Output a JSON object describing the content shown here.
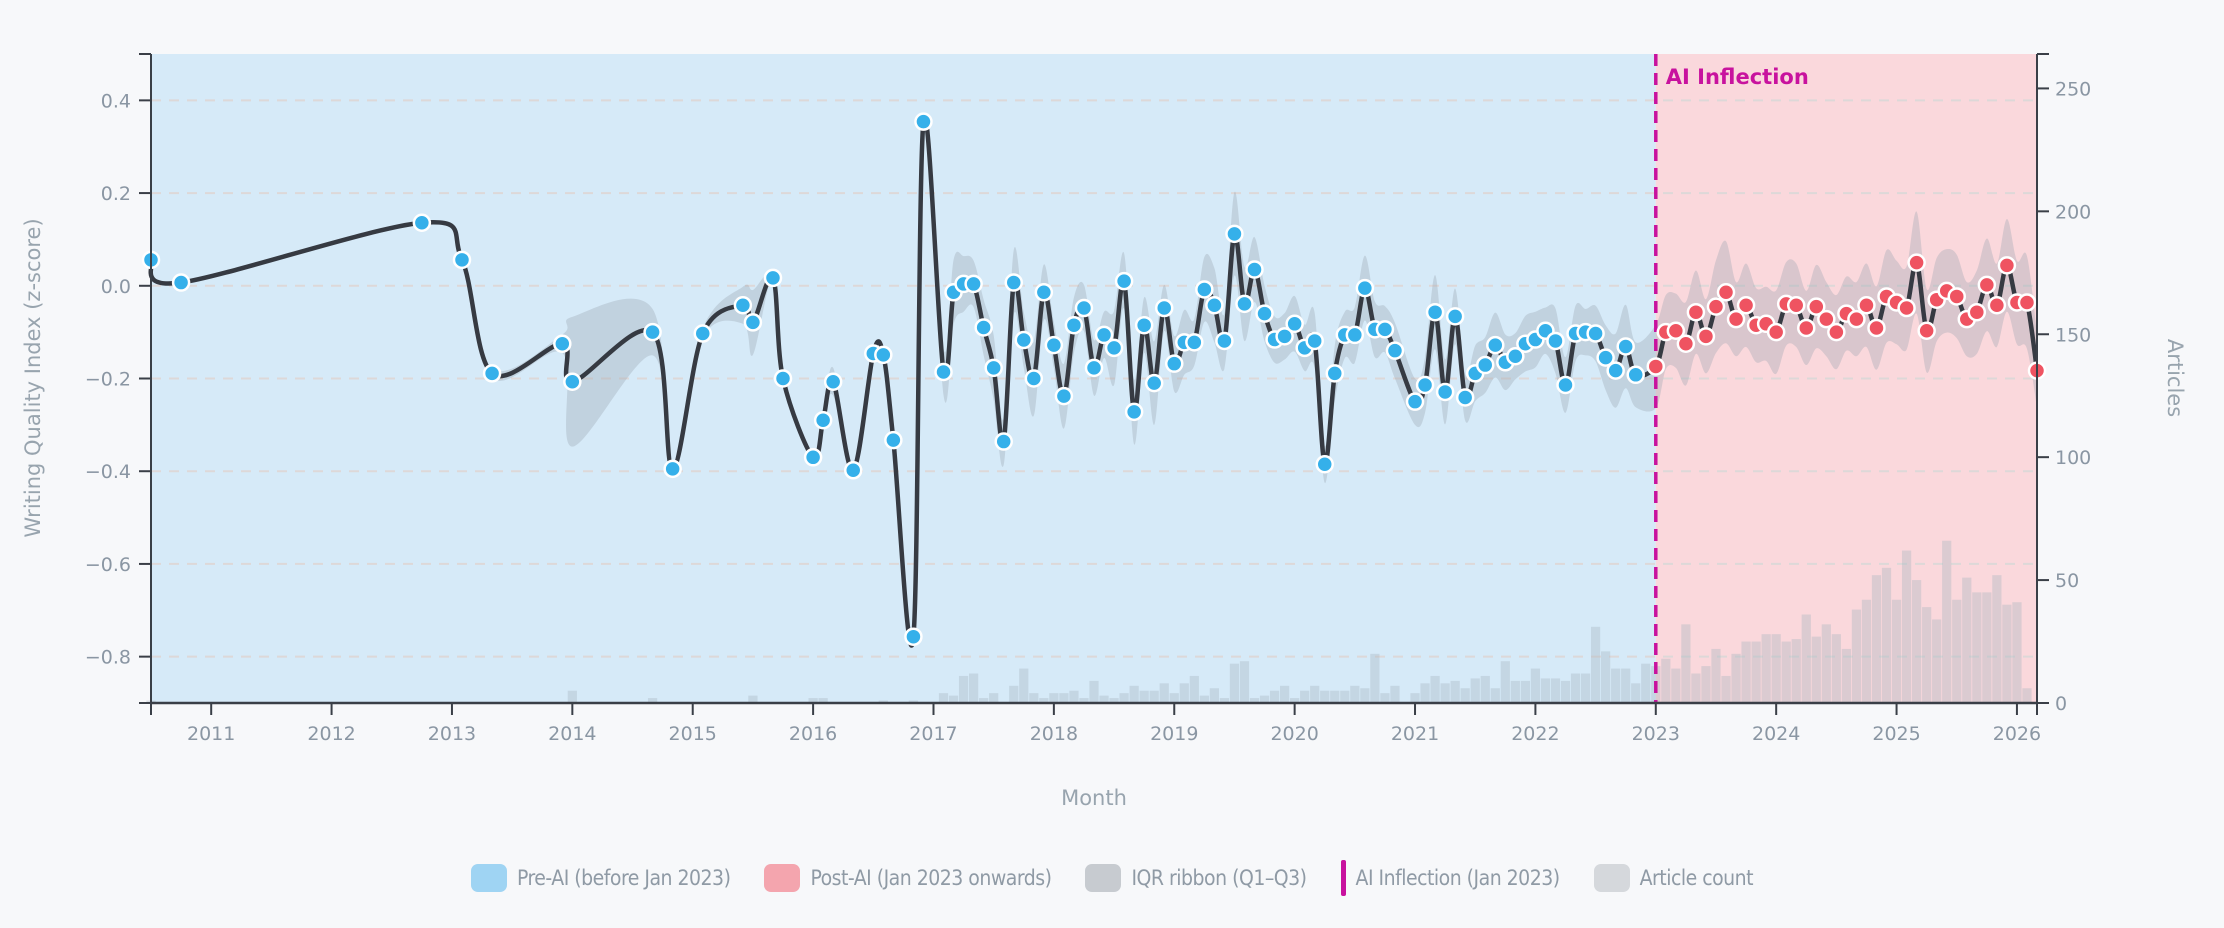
{
  "chart_data": {
    "type": "line",
    "xlabel": "Month",
    "ylabel": "Writing Quality Index (z-score)",
    "y2label": "Articles",
    "ylim": [
      -0.9,
      0.5
    ],
    "y2lim": [
      0,
      264
    ],
    "xlim": [
      "2010-07",
      "2026-03"
    ],
    "yticks": [
      "0.4",
      "0.2",
      "0.0",
      "−0.2",
      "−0.4",
      "−0.6",
      "−0.8"
    ],
    "ytick_values": [
      0.4,
      0.2,
      0.0,
      -0.2,
      -0.4,
      -0.6,
      -0.8
    ],
    "y2ticks": [
      0,
      50,
      100,
      150,
      200,
      250
    ],
    "xticks": [
      "2011",
      "2012",
      "2013",
      "2014",
      "2015",
      "2016",
      "2017",
      "2018",
      "2019",
      "2020",
      "2021",
      "2022",
      "2023",
      "2024",
      "2025",
      "2026"
    ],
    "grid": "horizontal dashed",
    "inflection": {
      "date": "2023-01",
      "label": "AI Inflection"
    },
    "colors": {
      "pre_region": "#d6eaf8",
      "post_region": "#fad8dc",
      "pre_point": "#35b0ea",
      "post_point": "#ef5361",
      "line": "#363a42",
      "ribbon": "#9aa5b1",
      "bars": "#a9b6c0",
      "inflection": "#c8129e"
    },
    "series_points_format": "[month, writing quality index, IQR half-width]",
    "points": [
      [
        "2010-07",
        0.056,
        0
      ],
      [
        "2010-10",
        0.007,
        0
      ],
      [
        "2012-10",
        0.136,
        0
      ],
      [
        "2013-02",
        0.056,
        0
      ],
      [
        "2013-05",
        -0.189,
        0.01
      ],
      [
        "2013-12",
        -0.125,
        0.02
      ],
      [
        "2014-01",
        -0.207,
        0.14
      ],
      [
        "2014-09",
        -0.1,
        0.05
      ],
      [
        "2014-11",
        -0.395,
        0
      ],
      [
        "2015-02",
        -0.103,
        0.01
      ],
      [
        "2015-06",
        -0.042,
        0.04
      ],
      [
        "2015-07",
        -0.079,
        0.07
      ],
      [
        "2015-09",
        0.017,
        0
      ],
      [
        "2015-10",
        -0.2,
        0
      ],
      [
        "2016-01",
        -0.37,
        0
      ],
      [
        "2016-02",
        -0.29,
        0
      ],
      [
        "2016-03",
        -0.207,
        0.03
      ],
      [
        "2016-05",
        -0.398,
        0
      ],
      [
        "2016-07",
        -0.146,
        0
      ],
      [
        "2016-08",
        -0.149,
        0
      ],
      [
        "2016-09",
        -0.333,
        0
      ],
      [
        "2016-11",
        -0.757,
        0
      ],
      [
        "2016-12",
        0.354,
        0
      ],
      [
        "2017-02",
        -0.186,
        0.05
      ],
      [
        "2017-03",
        -0.014,
        0.07
      ],
      [
        "2017-04",
        0.004,
        0.06
      ],
      [
        "2017-05",
        0.004,
        0.05
      ],
      [
        "2017-06",
        -0.09,
        0.06
      ],
      [
        "2017-07",
        -0.177,
        0.07
      ],
      [
        "2017-08",
        -0.336,
        0.05
      ],
      [
        "2017-09",
        0.007,
        0.07
      ],
      [
        "2017-10",
        -0.117,
        0.06
      ],
      [
        "2017-11",
        -0.2,
        0.08
      ],
      [
        "2017-12",
        -0.014,
        0.06
      ],
      [
        "2018-01",
        -0.128,
        0.05
      ],
      [
        "2018-02",
        -0.238,
        0.07
      ],
      [
        "2018-03",
        -0.085,
        0.06
      ],
      [
        "2018-04",
        -0.048,
        0.05
      ],
      [
        "2018-05",
        -0.177,
        0.06
      ],
      [
        "2018-06",
        -0.106,
        0.05
      ],
      [
        "2018-07",
        -0.134,
        0.08
      ],
      [
        "2018-08",
        0.01,
        0.06
      ],
      [
        "2018-09",
        -0.272,
        0.07
      ],
      [
        "2018-10",
        -0.085,
        0.06
      ],
      [
        "2018-11",
        -0.21,
        0.09
      ],
      [
        "2018-12",
        -0.048,
        0.05
      ],
      [
        "2019-01",
        -0.168,
        0.06
      ],
      [
        "2019-02",
        -0.122,
        0.07
      ],
      [
        "2019-03",
        -0.122,
        0.05
      ],
      [
        "2019-04",
        -0.008,
        0.07
      ],
      [
        "2019-05",
        -0.042,
        0.08
      ],
      [
        "2019-06",
        -0.119,
        0.06
      ],
      [
        "2019-07",
        0.112,
        0.09
      ],
      [
        "2019-08",
        -0.039,
        0.08
      ],
      [
        "2019-09",
        0.035,
        0.07
      ],
      [
        "2019-10",
        -0.06,
        0.06
      ],
      [
        "2019-11",
        -0.116,
        0.05
      ],
      [
        "2019-12",
        -0.109,
        0.05
      ],
      [
        "2020-01",
        -0.082,
        0.06
      ],
      [
        "2020-02",
        -0.134,
        0.05
      ],
      [
        "2020-03",
        -0.119,
        0.06
      ],
      [
        "2020-04",
        -0.385,
        0.04
      ],
      [
        "2020-05",
        -0.189,
        0.06
      ],
      [
        "2020-06",
        -0.106,
        0.05
      ],
      [
        "2020-07",
        -0.106,
        0.06
      ],
      [
        "2020-08",
        -0.005,
        0.07
      ],
      [
        "2020-09",
        -0.094,
        0.06
      ],
      [
        "2020-10",
        -0.094,
        0.05
      ],
      [
        "2020-11",
        -0.14,
        0.06
      ],
      [
        "2021-01",
        -0.25,
        0.05
      ],
      [
        "2021-02",
        -0.214,
        0.06
      ],
      [
        "2021-03",
        -0.057,
        0.08
      ],
      [
        "2021-04",
        -0.229,
        0.07
      ],
      [
        "2021-05",
        -0.066,
        0.06
      ],
      [
        "2021-06",
        -0.241,
        0.05
      ],
      [
        "2021-07",
        -0.189,
        0.06
      ],
      [
        "2021-08",
        -0.171,
        0.06
      ],
      [
        "2021-09",
        -0.128,
        0.07
      ],
      [
        "2021-10",
        -0.165,
        0.06
      ],
      [
        "2021-11",
        -0.152,
        0.05
      ],
      [
        "2021-12",
        -0.125,
        0.06
      ],
      [
        "2022-01",
        -0.116,
        0.06
      ],
      [
        "2022-02",
        -0.097,
        0.05
      ],
      [
        "2022-03",
        -0.119,
        0.07
      ],
      [
        "2022-04",
        -0.214,
        0.06
      ],
      [
        "2022-05",
        -0.103,
        0.06
      ],
      [
        "2022-06",
        -0.1,
        0.05
      ],
      [
        "2022-07",
        -0.103,
        0.06
      ],
      [
        "2022-08",
        -0.155,
        0.07
      ],
      [
        "2022-09",
        -0.183,
        0.08
      ],
      [
        "2022-10",
        -0.131,
        0.09
      ],
      [
        "2022-11",
        -0.192,
        0.07
      ],
      [
        "2023-01",
        -0.174,
        0.09
      ],
      [
        "2023-02",
        -0.1,
        0.08
      ],
      [
        "2023-03",
        -0.097,
        0.08
      ],
      [
        "2023-04",
        -0.125,
        0.09
      ],
      [
        "2023-05",
        -0.057,
        0.09
      ],
      [
        "2023-06",
        -0.109,
        0.08
      ],
      [
        "2023-07",
        -0.045,
        0.1
      ],
      [
        "2023-08",
        -0.014,
        0.11
      ],
      [
        "2023-09",
        -0.072,
        0.08
      ],
      [
        "2023-10",
        -0.042,
        0.09
      ],
      [
        "2023-11",
        -0.085,
        0.08
      ],
      [
        "2023-12",
        -0.082,
        0.08
      ],
      [
        "2024-01",
        -0.1,
        0.09
      ],
      [
        "2024-02",
        -0.039,
        0.09
      ],
      [
        "2024-03",
        -0.042,
        0.09
      ],
      [
        "2024-04",
        -0.091,
        0.08
      ],
      [
        "2024-05",
        -0.045,
        0.09
      ],
      [
        "2024-06",
        -0.072,
        0.08
      ],
      [
        "2024-07",
        -0.1,
        0.08
      ],
      [
        "2024-08",
        -0.06,
        0.08
      ],
      [
        "2024-09",
        -0.072,
        0.08
      ],
      [
        "2024-10",
        -0.042,
        0.09
      ],
      [
        "2024-11",
        -0.091,
        0.09
      ],
      [
        "2024-12",
        -0.023,
        0.1
      ],
      [
        "2025-01",
        -0.036,
        0.09
      ],
      [
        "2025-02",
        -0.048,
        0.09
      ],
      [
        "2025-03",
        0.05,
        0.11
      ],
      [
        "2025-04",
        -0.097,
        0.09
      ],
      [
        "2025-05",
        -0.03,
        0.09
      ],
      [
        "2025-06",
        -0.011,
        0.09
      ],
      [
        "2025-07",
        -0.023,
        0.09
      ],
      [
        "2025-08",
        -0.072,
        0.08
      ],
      [
        "2025-09",
        -0.057,
        0.09
      ],
      [
        "2025-10",
        0.002,
        0.1
      ],
      [
        "2025-11",
        -0.042,
        0.09
      ],
      [
        "2025-12",
        0.044,
        0.1
      ],
      [
        "2026-01",
        -0.036,
        0.09
      ],
      [
        "2026-02",
        -0.036,
        0.1
      ],
      [
        "2026-03",
        -0.183,
        0.08
      ]
    ],
    "article_counts_start": "2017-02",
    "article_counts_early": [
      [
        "2010-07",
        1
      ],
      [
        "2014-01",
        5
      ],
      [
        "2014-09",
        2
      ],
      [
        "2015-07",
        3
      ],
      [
        "2016-01",
        2
      ],
      [
        "2016-02",
        2
      ],
      [
        "2016-08",
        1
      ],
      [
        "2016-11",
        1
      ]
    ],
    "article_counts": [
      4,
      3,
      11,
      12,
      2,
      4,
      0,
      7,
      14,
      4,
      2,
      4,
      4,
      5,
      2,
      9,
      3,
      2,
      4,
      7,
      5,
      5,
      8,
      4,
      8,
      11,
      3,
      6,
      2,
      16,
      17,
      2,
      3,
      5,
      7,
      2,
      5,
      7,
      5,
      5,
      5,
      7,
      6,
      20,
      4,
      7,
      0,
      4,
      8,
      11,
      8,
      9,
      6,
      10,
      11,
      6,
      17,
      9,
      9,
      14,
      10,
      10,
      9,
      12,
      12,
      31,
      21,
      14,
      14,
      8,
      16,
      15,
      18,
      14,
      32,
      12,
      15,
      22,
      11,
      20,
      25,
      25,
      28,
      28,
      25,
      26,
      36,
      27,
      32,
      28,
      22,
      38,
      42,
      52,
      55,
      42,
      62,
      50,
      39,
      34,
      66,
      42,
      51,
      45,
      45,
      52,
      40,
      41,
      6
    ]
  },
  "legend": [
    {
      "label": "Pre-AI (before Jan 2023)",
      "color": "#9fd4f3"
    },
    {
      "label": "Post-AI (Jan 2023 onwards)",
      "color": "#f4a5ae"
    },
    {
      "label": "IQR ribbon (Q1–Q3)",
      "color": "#c7cbd0"
    },
    {
      "label": "AI Inflection (Jan 2023)",
      "color": "#c8129e"
    },
    {
      "label": "Article count",
      "color": "#d5d8dc"
    }
  ]
}
